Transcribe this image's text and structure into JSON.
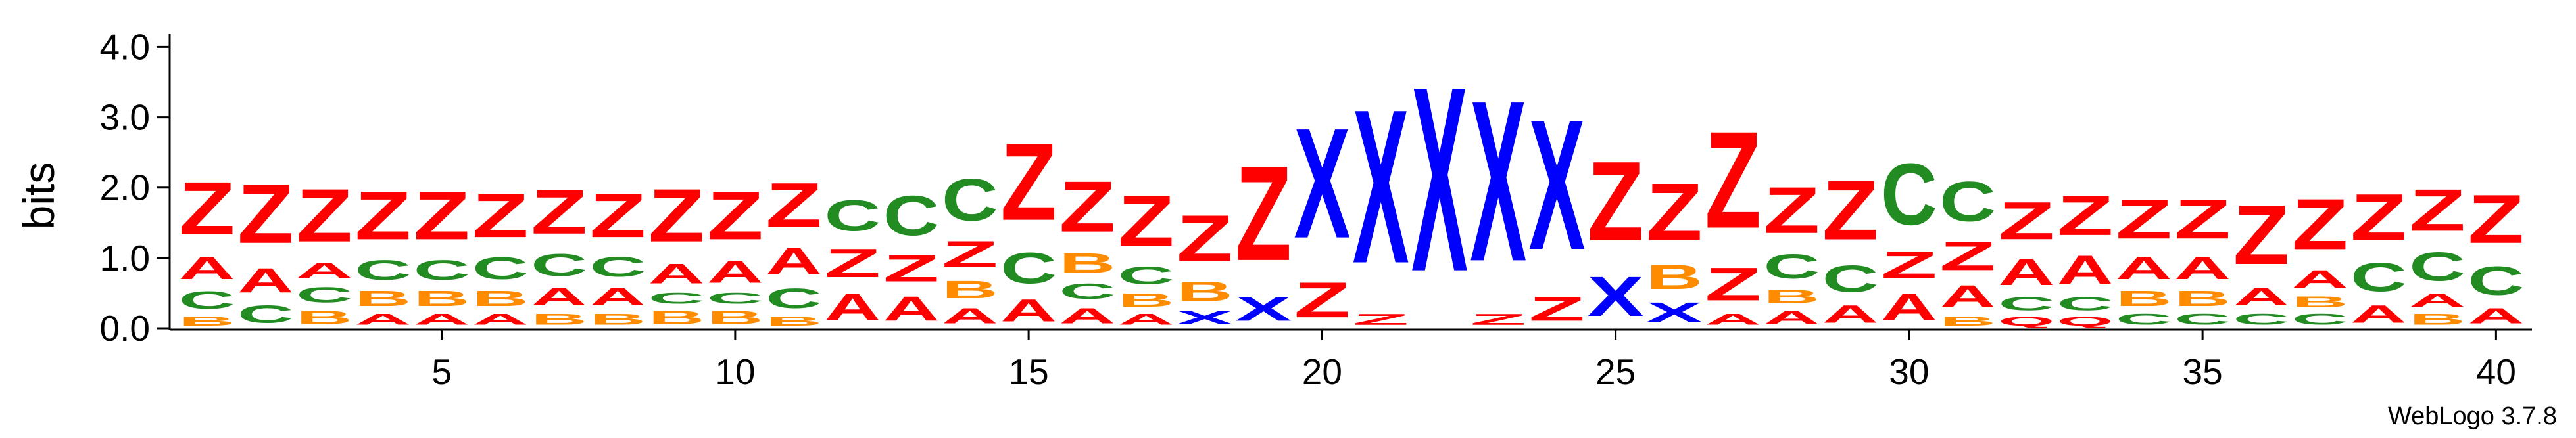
{
  "chart_data": {
    "type": "sequence-logo",
    "ylabel": "bits",
    "ylim": [
      0,
      4.2
    ],
    "yticks": [
      "0.0",
      "1.0",
      "2.0",
      "3.0",
      "4.0"
    ],
    "xticks": [
      "5",
      "10",
      "15",
      "20",
      "25",
      "30",
      "35",
      "40"
    ],
    "footer": "WebLogo 3.7.8",
    "colors": {
      "Z": "#ff0000",
      "X": "#0000ff",
      "C": "#228b22",
      "B": "#ff8c00",
      "A": "#ff0000",
      "Q": "#ff0000"
    },
    "positions": [
      [
        [
          "B",
          0.2
        ],
        [
          "C",
          0.4
        ],
        [
          "A",
          0.5
        ],
        [
          "Z",
          1.2
        ]
      ],
      [
        [
          "C",
          0.4
        ],
        [
          "A",
          0.55
        ],
        [
          "Z",
          1.35
        ]
      ],
      [
        [
          "B",
          0.3
        ],
        [
          "C",
          0.35
        ],
        [
          "A",
          0.35
        ],
        [
          "Z",
          1.2
        ]
      ],
      [
        [
          "A",
          0.25
        ],
        [
          "B",
          0.35
        ],
        [
          "C",
          0.45
        ],
        [
          "Z",
          1.1
        ]
      ],
      [
        [
          "A",
          0.25
        ],
        [
          "B",
          0.35
        ],
        [
          "C",
          0.45
        ],
        [
          "Z",
          1.1
        ]
      ],
      [
        [
          "A",
          0.25
        ],
        [
          "B",
          0.35
        ],
        [
          "C",
          0.5
        ],
        [
          "Z",
          1.0
        ]
      ],
      [
        [
          "B",
          0.25
        ],
        [
          "A",
          0.4
        ],
        [
          "C",
          0.5
        ],
        [
          "Z",
          1.0
        ]
      ],
      [
        [
          "B",
          0.25
        ],
        [
          "A",
          0.4
        ],
        [
          "C",
          0.45
        ],
        [
          "Z",
          1.0
        ]
      ],
      [
        [
          "B",
          0.3
        ],
        [
          "C",
          0.25
        ],
        [
          "A",
          0.45
        ],
        [
          "Z",
          1.2
        ]
      ],
      [
        [
          "B",
          0.3
        ],
        [
          "C",
          0.25
        ],
        [
          "A",
          0.5
        ],
        [
          "Z",
          1.1
        ]
      ],
      [
        [
          "B",
          0.2
        ],
        [
          "C",
          0.45
        ],
        [
          "A",
          0.6
        ],
        [
          "Z",
          1.0
        ]
      ],
      [
        [
          "A",
          0.6
        ],
        [
          "Z",
          0.65
        ],
        [
          "C",
          0.7
        ]
      ],
      [
        [
          "A",
          0.55
        ],
        [
          "Z",
          0.6
        ],
        [
          "C",
          0.9
        ]
      ],
      [
        [
          "A",
          0.35
        ],
        [
          "B",
          0.4
        ],
        [
          "Z",
          0.6
        ],
        [
          "C",
          0.95
        ]
      ],
      [
        [
          "A",
          0.5
        ],
        [
          "C",
          0.7
        ],
        [
          "Z",
          1.75
        ]
      ],
      [
        [
          "A",
          0.35
        ],
        [
          "C",
          0.35
        ],
        [
          "B",
          0.45
        ],
        [
          "Z",
          1.15
        ]
      ],
      [
        [
          "A",
          0.25
        ],
        [
          "B",
          0.3
        ],
        [
          "C",
          0.4
        ],
        [
          "Z",
          1.15
        ]
      ],
      [
        [
          "X",
          0.3
        ],
        [
          "B",
          0.45
        ],
        [
          "Z",
          1.05
        ]
      ],
      [
        [
          "X",
          0.55
        ],
        [
          "Z",
          2.15
        ]
      ],
      [
        [
          "Z",
          0.8
        ],
        [
          "X",
          2.5
        ]
      ],
      [
        [
          "Z",
          0.25
        ],
        [
          "X",
          3.5
        ]
      ],
      [
        [
          "X",
          4.2
        ]
      ],
      [
        [
          "Z",
          0.25
        ],
        [
          "X",
          3.65
        ]
      ],
      [
        [
          "Z",
          0.55
        ],
        [
          "X",
          2.95
        ]
      ],
      [
        [
          "X",
          0.9
        ],
        [
          "Z",
          1.8
        ]
      ],
      [
        [
          "X",
          0.45
        ],
        [
          "B",
          0.55
        ],
        [
          "Z",
          1.3
        ]
      ],
      [
        [
          "A",
          0.25
        ],
        [
          "Z",
          0.75
        ],
        [
          "Z",
          2.2
        ]
      ],
      [
        [
          "A",
          0.3
        ],
        [
          "B",
          0.3
        ],
        [
          "C",
          0.55
        ],
        [
          "Z",
          1.05
        ]
      ],
      [
        [
          "A",
          0.4
        ],
        [
          "C",
          0.6
        ],
        [
          "Z",
          1.35
        ]
      ],
      [
        [
          "A",
          0.6
        ],
        [
          "Z",
          0.6
        ],
        [
          "C",
          1.4
        ]
      ],
      [
        [
          "B",
          0.2
        ],
        [
          "A",
          0.5
        ],
        [
          "Z",
          0.65
        ],
        [
          "C",
          0.9
        ]
      ],
      [
        [
          "Q",
          0.2
        ],
        [
          "C",
          0.3
        ],
        [
          "A",
          0.6
        ],
        [
          "Z",
          0.85
        ]
      ],
      [
        [
          "Q",
          0.2
        ],
        [
          "C",
          0.3
        ],
        [
          "A",
          0.65
        ],
        [
          "Z",
          0.9
        ]
      ],
      [
        [
          "C",
          0.25
        ],
        [
          "B",
          0.35
        ],
        [
          "A",
          0.5
        ],
        [
          "Z",
          0.9
        ]
      ],
      [
        [
          "C",
          0.25
        ],
        [
          "B",
          0.35
        ],
        [
          "A",
          0.5
        ],
        [
          "Z",
          0.9
        ]
      ],
      [
        [
          "C",
          0.25
        ],
        [
          "A",
          0.4
        ],
        [
          "Z",
          1.35
        ]
      ],
      [
        [
          "C",
          0.25
        ],
        [
          "B",
          0.25
        ],
        [
          "A",
          0.4
        ],
        [
          "Z",
          1.15
        ]
      ],
      [
        [
          "A",
          0.4
        ],
        [
          "C",
          0.65
        ],
        [
          "Z",
          1.05
        ]
      ],
      [
        [
          "B",
          0.25
        ],
        [
          "A",
          0.3
        ],
        [
          "C",
          0.65
        ],
        [
          "Z",
          0.95
        ]
      ],
      [
        [
          "A",
          0.35
        ],
        [
          "C",
          0.65
        ],
        [
          "Z",
          1.1
        ]
      ]
    ]
  }
}
